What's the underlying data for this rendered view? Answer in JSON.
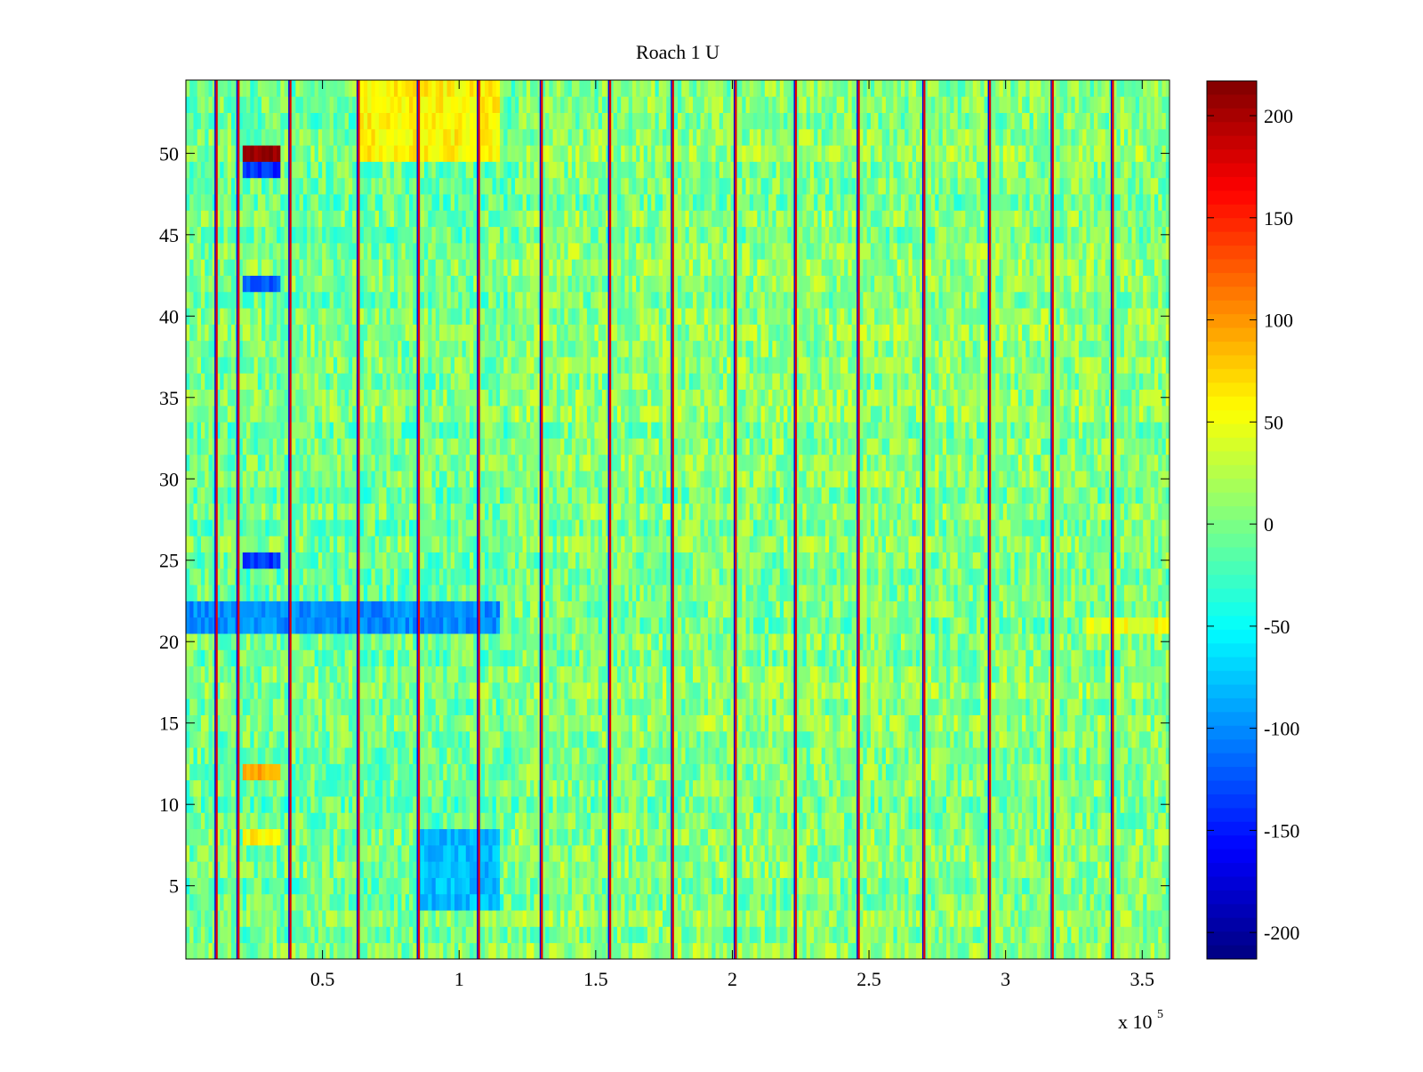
{
  "chart_data": {
    "type": "heatmap",
    "title": "Roach 1 U",
    "xlabel": "",
    "ylabel": "",
    "x_multiplier_label": "x 10",
    "x_multiplier_exponent": "5",
    "xlim": [
      0.0,
      3.6
    ],
    "ylim": [
      0.5,
      54.5
    ],
    "rows": 54,
    "x_ticks": [
      0.5,
      1,
      1.5,
      2,
      2.5,
      3,
      3.5
    ],
    "x_tick_labels": [
      "0.5",
      "1",
      "1.5",
      "2",
      "2.5",
      "3",
      "3.5"
    ],
    "y_ticks": [
      5,
      10,
      15,
      20,
      25,
      30,
      35,
      40,
      45,
      50
    ],
    "y_tick_labels": [
      "5",
      "10",
      "15",
      "20",
      "25",
      "30",
      "35",
      "40",
      "45",
      "50"
    ],
    "colorbar": {
      "colormap": "jet",
      "range": [
        -213,
        217
      ],
      "ticks": [
        200,
        150,
        100,
        50,
        0,
        -50,
        -100,
        -150,
        -200
      ],
      "tick_labels": [
        "200",
        "150",
        "100",
        "50",
        "0",
        "-50",
        "-100",
        "-150",
        "-200"
      ]
    },
    "vertical_bands_x": [
      0.11,
      0.19,
      0.38,
      0.63,
      0.85,
      1.07,
      1.3,
      1.55,
      1.78,
      2.01,
      2.23,
      2.46,
      2.7,
      2.94,
      3.17,
      3.39
    ],
    "regions": [
      {
        "x": [
          0.21,
          0.35
        ],
        "y": [
          49.5,
          50.5
        ],
        "value": 210
      },
      {
        "x": [
          0.21,
          0.35
        ],
        "y": [
          48.5,
          49.5
        ],
        "value": -140
      },
      {
        "x": [
          0.21,
          0.35
        ],
        "y": [
          41.5,
          42.5
        ],
        "value": -120
      },
      {
        "x": [
          0.21,
          0.35
        ],
        "y": [
          24.5,
          25.5
        ],
        "value": -140
      },
      {
        "x": [
          0.21,
          0.35
        ],
        "y": [
          11.5,
          12.5
        ],
        "value": 90
      },
      {
        "x": [
          0.21,
          0.35
        ],
        "y": [
          7.5,
          8.5
        ],
        "value": 60
      },
      {
        "x": [
          0.63,
          1.15
        ],
        "y": [
          49.5,
          54.5
        ],
        "value": 60
      },
      {
        "x": [
          0.0,
          1.15
        ],
        "y": [
          20.5,
          22.5
        ],
        "value": -100
      },
      {
        "x": [
          0.85,
          1.15
        ],
        "y": [
          3.5,
          8.5
        ],
        "value": -80
      },
      {
        "x": [
          3.3,
          3.6
        ],
        "y": [
          20.5,
          21.5
        ],
        "value": 50
      }
    ]
  }
}
